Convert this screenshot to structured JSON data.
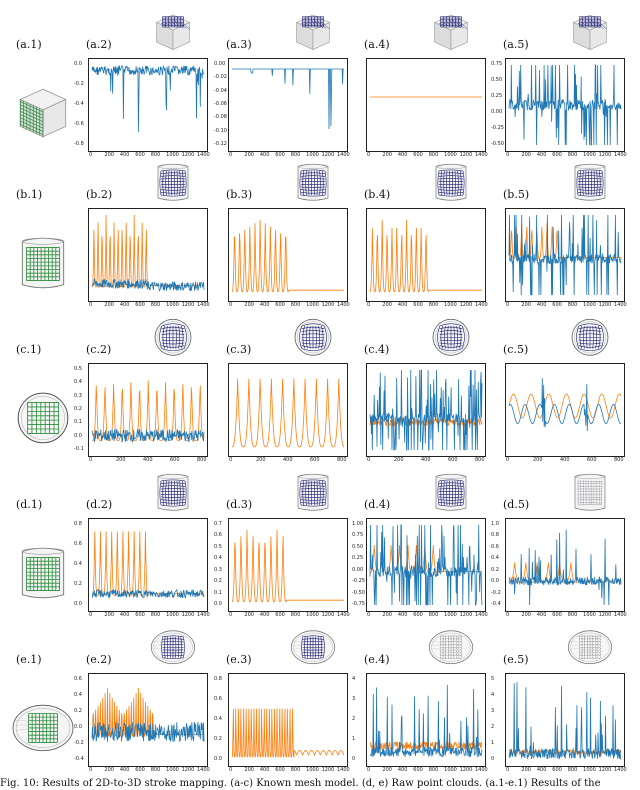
{
  "figure": {
    "caption": "Fig. 10: Results of 2D-to-3D stroke mapping. (a-c) Known mesh model. (d, e) Raw point clouds. (a.1-e.1) Results of the"
  },
  "colors": {
    "blue": "#1f77b4",
    "orange": "#ff7f0e",
    "grid_green": "#2a8a3a",
    "grid_navy": "#1a1a6e"
  },
  "rows": [
    {
      "id": "a",
      "source_label": "(a.1)",
      "source_shape": "cube",
      "panels": [
        {
          "label": "(a.2)",
          "yticks": [
            "0.0",
            "-0.2",
            "-0.4",
            "-0.6",
            "-0.8"
          ],
          "xticks": [
            "0",
            "200",
            "400",
            "600",
            "800",
            "1000",
            "1200",
            "1400"
          ],
          "thumb": "cube"
        },
        {
          "label": "(a.3)",
          "yticks": [
            "0.00",
            "-0.02",
            "-0.04",
            "-0.06",
            "-0.08",
            "-0.10",
            "-0.12"
          ],
          "xticks": [
            "0",
            "200",
            "400",
            "600",
            "800",
            "1000",
            "1200",
            "1400"
          ],
          "thumb": "cube"
        },
        {
          "label": "(a.4)",
          "yticks": [],
          "xticks": [
            "0",
            "200",
            "400",
            "600",
            "800",
            "1000",
            "1200",
            "1400"
          ],
          "thumb": "cube"
        },
        {
          "label": "(a.5)",
          "yticks": [
            "0.75",
            "0.50",
            "0.25",
            "0.00",
            "-0.25",
            "-0.50"
          ],
          "xticks": [
            "0",
            "200",
            "400",
            "600",
            "800",
            "1000",
            "1200",
            "1400"
          ],
          "thumb": "cube"
        }
      ]
    },
    {
      "id": "b",
      "source_label": "(b.1)",
      "source_shape": "cylinder",
      "panels": [
        {
          "label": "(b.2)",
          "yticks": [],
          "xticks": [
            "0",
            "200",
            "400",
            "600",
            "800",
            "1000",
            "1200",
            "1400"
          ],
          "thumb": "cylinder"
        },
        {
          "label": "(b.3)",
          "yticks": [],
          "xticks": [
            "0",
            "200",
            "400",
            "600",
            "800",
            "1000",
            "1200",
            "1400"
          ],
          "thumb": "cylinder"
        },
        {
          "label": "(b.4)",
          "yticks": [],
          "xticks": [
            "0",
            "200",
            "400",
            "600",
            "800",
            "1000",
            "1200",
            "1400"
          ],
          "thumb": "cylinder"
        },
        {
          "label": "(b.5)",
          "yticks": [],
          "xticks": [
            "0",
            "200",
            "400",
            "600",
            "800",
            "1000",
            "1200",
            "1400"
          ],
          "thumb": "cylinder"
        }
      ]
    },
    {
      "id": "c",
      "source_label": "(c.1)",
      "source_shape": "sphere",
      "panels": [
        {
          "label": "(c.2)",
          "yticks": [
            "0.5",
            "0.4",
            "0.3",
            "0.2",
            "0.1",
            "0.0",
            "-0.1"
          ],
          "xticks": [
            "0",
            "200",
            "400",
            "600",
            "800"
          ],
          "thumb": "sphere"
        },
        {
          "label": "(c.3)",
          "yticks": [],
          "xticks": [
            "0",
            "200",
            "400",
            "600",
            "800"
          ],
          "thumb": "sphere"
        },
        {
          "label": "(c.4)",
          "yticks": [],
          "xticks": [
            "0",
            "200",
            "400",
            "600",
            "800"
          ],
          "thumb": "sphere"
        },
        {
          "label": "(c.5)",
          "yticks": [],
          "xticks": [
            "0",
            "200",
            "400",
            "600",
            "800"
          ],
          "thumb": "sphere"
        }
      ]
    },
    {
      "id": "d",
      "source_label": "(d.1)",
      "source_shape": "cylinder",
      "panels": [
        {
          "label": "(d.2)",
          "yticks": [
            "0.8",
            "0.6",
            "0.4",
            "0.2",
            "0.0"
          ],
          "xticks": [
            "0",
            "200",
            "400",
            "600",
            "800",
            "1000",
            "1200",
            "1400"
          ],
          "thumb": "cylinder"
        },
        {
          "label": "(d.3)",
          "yticks": [
            "0.7",
            "0.6",
            "0.5",
            "0.4",
            "0.3",
            "0.2",
            "0.1",
            "0.0"
          ],
          "xticks": [
            "0",
            "200",
            "400",
            "600",
            "800",
            "1000",
            "1200",
            "1400"
          ],
          "thumb": "cylinder"
        },
        {
          "label": "(d.4)",
          "yticks": [
            "1.00",
            "0.75",
            "0.50",
            "0.25",
            "0.00",
            "-0.25",
            "-0.50",
            "-0.75"
          ],
          "xticks": [
            "0",
            "200",
            "400",
            "600",
            "800",
            "1000",
            "1200",
            "1400"
          ],
          "thumb": "cylinder"
        },
        {
          "label": "(d.5)",
          "yticks": [
            "1.0",
            "0.8",
            "0.6",
            "0.4",
            "0.2",
            "0.0",
            "-0.2",
            "-0.4"
          ],
          "xticks": [
            "0",
            "200",
            "400",
            "600",
            "800",
            "1000",
            "1200",
            "1400"
          ],
          "thumb": "cylinder-sketch"
        }
      ]
    },
    {
      "id": "e",
      "source_label": "(e.1)",
      "source_shape": "egg",
      "panels": [
        {
          "label": "(e.2)",
          "yticks": [
            "0.6",
            "0.4",
            "0.2",
            "0.0",
            "-0.2",
            "-0.4"
          ],
          "xticks": [
            "0",
            "200",
            "400",
            "600",
            "800",
            "1000",
            "1200",
            "1400"
          ],
          "thumb": "egg"
        },
        {
          "label": "(e.3)",
          "yticks": [
            "0.8",
            "0.6",
            "0.4",
            "0.2",
            "0.0"
          ],
          "xticks": [
            "0",
            "200",
            "400",
            "600",
            "800",
            "1000",
            "1200",
            "1400"
          ],
          "thumb": "egg"
        },
        {
          "label": "(e.4)",
          "yticks": [
            "4",
            "3",
            "2",
            "1",
            "0"
          ],
          "xticks": [
            "0",
            "200",
            "400",
            "600",
            "800",
            "1000",
            "1200",
            "1400"
          ],
          "thumb": "egg-sketch"
        },
        {
          "label": "(e.5)",
          "yticks": [
            "5",
            "4",
            "3",
            "2",
            "1",
            "0"
          ],
          "xticks": [
            "0",
            "200",
            "400",
            "600",
            "800",
            "1000",
            "1200",
            "1400"
          ],
          "thumb": "egg-sketch"
        }
      ]
    }
  ],
  "chart_data": [
    {
      "panel": "(a.2)",
      "type": "line",
      "series": [
        {
          "name": "blue",
          "style": "dense noise near 0 with negative spikes to -0.8"
        }
      ],
      "ylim": [
        -0.85,
        0.05
      ],
      "xlim": [
        0,
        1450
      ]
    },
    {
      "panel": "(a.3)",
      "type": "line",
      "series": [
        {
          "name": "blue",
          "style": "flat near 0 with sparse spikes to -0.12"
        }
      ],
      "ylim": [
        -0.13,
        0.01
      ],
      "xlim": [
        0,
        1450
      ]
    },
    {
      "panel": "(a.4)",
      "type": "line",
      "series": [
        {
          "name": "orange",
          "style": "flat line"
        }
      ],
      "xlim": [
        0,
        1450
      ]
    },
    {
      "panel": "(a.5)",
      "type": "line",
      "series": [
        {
          "name": "blue",
          "style": "symmetric noisy spikes"
        }
      ],
      "ylim": [
        -0.6,
        0.8
      ],
      "xlim": [
        0,
        1450
      ]
    },
    {
      "panel": "(b.2)",
      "type": "line",
      "series": [
        {
          "name": "orange",
          "style": "periodic peaks then flat after 800"
        },
        {
          "name": "blue",
          "style": "noise band near baseline"
        }
      ],
      "xlim": [
        0,
        1450
      ]
    },
    {
      "panel": "(b.3)",
      "type": "line",
      "series": [
        {
          "name": "orange",
          "style": "periodic peaks then flat after 800"
        }
      ],
      "xlim": [
        0,
        1450
      ]
    },
    {
      "panel": "(b.4)",
      "type": "line",
      "series": [
        {
          "name": "orange",
          "style": "periodic peaks then flat after 800"
        }
      ],
      "xlim": [
        0,
        1450
      ]
    },
    {
      "panel": "(b.5)",
      "type": "line",
      "series": [
        {
          "name": "orange",
          "style": "periodic peaks until 700"
        },
        {
          "name": "blue",
          "style": "large noisy spikes"
        }
      ],
      "xlim": [
        0,
        1450
      ]
    },
    {
      "panel": "(c.2)",
      "type": "line",
      "series": [
        {
          "name": "orange",
          "style": "periodic peaks"
        },
        {
          "name": "blue",
          "style": "noise band"
        }
      ],
      "ylim": [
        -0.1,
        0.5
      ],
      "xlim": [
        0,
        850
      ]
    },
    {
      "panel": "(c.3)",
      "type": "line",
      "series": [
        {
          "name": "orange",
          "style": "periodic peaks"
        }
      ],
      "xlim": [
        0,
        850
      ]
    },
    {
      "panel": "(c.4)",
      "type": "line",
      "series": [
        {
          "name": "blue",
          "style": "very dense high-amplitude noise"
        },
        {
          "name": "orange",
          "style": "hidden beneath"
        }
      ],
      "xlim": [
        0,
        850
      ]
    },
    {
      "panel": "(c.5)",
      "type": "line",
      "series": [
        {
          "name": "orange",
          "style": "periodic waves"
        },
        {
          "name": "blue",
          "style": "waves with two thick bursts"
        }
      ],
      "xlim": [
        0,
        850
      ]
    },
    {
      "panel": "(d.2)",
      "type": "line",
      "series": [
        {
          "name": "orange",
          "style": "periodic peaks until 700"
        },
        {
          "name": "blue",
          "style": "noise band"
        }
      ],
      "ylim": [
        -0.05,
        0.85
      ],
      "xlim": [
        0,
        1450
      ]
    },
    {
      "panel": "(d.3)",
      "type": "line",
      "series": [
        {
          "name": "orange",
          "style": "periodic peaks until 700 then low"
        }
      ],
      "ylim": [
        0,
        0.75
      ],
      "xlim": [
        0,
        1450
      ]
    },
    {
      "panel": "(d.4)",
      "type": "line",
      "series": [
        {
          "name": "blue",
          "style": "dense symmetric noise"
        },
        {
          "name": "orange",
          "style": "peaks"
        }
      ],
      "ylim": [
        -0.8,
        1.05
      ],
      "xlim": [
        0,
        1450
      ]
    },
    {
      "panel": "(d.5)",
      "type": "line",
      "series": [
        {
          "name": "blue",
          "style": "sparse spikes"
        },
        {
          "name": "orange",
          "style": "small peaks"
        }
      ],
      "ylim": [
        -0.45,
        1.05
      ],
      "xlim": [
        0,
        1450
      ]
    },
    {
      "panel": "(e.2)",
      "type": "line",
      "series": [
        {
          "name": "orange",
          "style": "dense peaks until 700"
        },
        {
          "name": "blue",
          "style": "noise band"
        }
      ],
      "ylim": [
        -0.45,
        0.65
      ],
      "xlim": [
        0,
        1450
      ]
    },
    {
      "panel": "(e.3)",
      "type": "line",
      "series": [
        {
          "name": "orange",
          "style": "dense peaks until 700 then small"
        }
      ],
      "ylim": [
        0,
        0.85
      ],
      "xlim": [
        0,
        1450
      ]
    },
    {
      "panel": "(e.4)",
      "type": "line",
      "series": [
        {
          "name": "blue",
          "style": "sparse tall spikes"
        },
        {
          "name": "orange",
          "style": "low noise band"
        }
      ],
      "ylim": [
        -0.3,
        4.2
      ],
      "xlim": [
        0,
        1450
      ]
    },
    {
      "panel": "(e.5)",
      "type": "line",
      "series": [
        {
          "name": "blue",
          "style": "sparse tall spikes"
        },
        {
          "name": "orange",
          "style": "low noise band"
        }
      ],
      "ylim": [
        -0.3,
        5.2
      ],
      "xlim": [
        0,
        1450
      ]
    }
  ]
}
